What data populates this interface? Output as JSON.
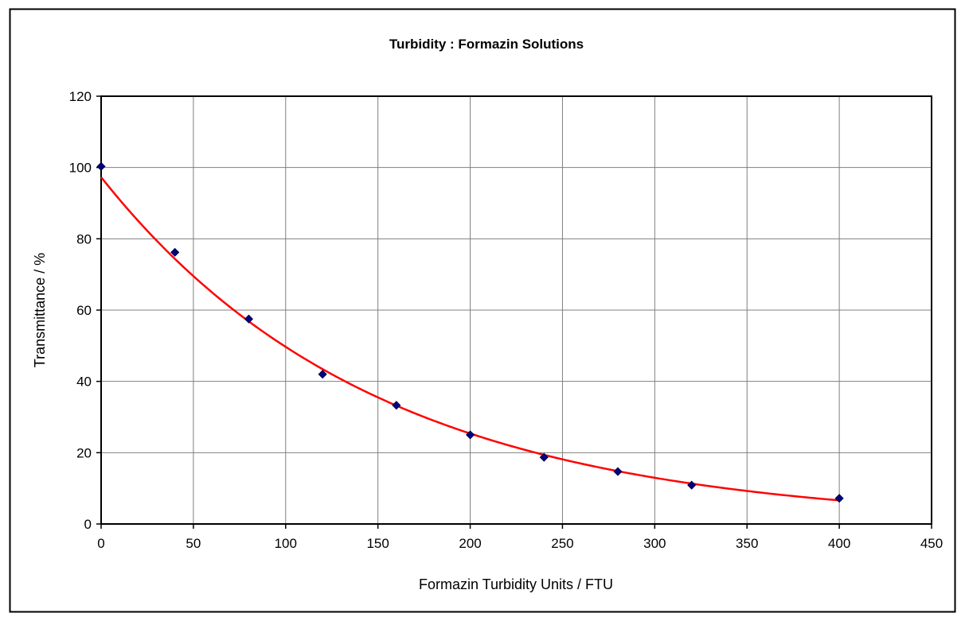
{
  "chart_data": {
    "type": "scatter",
    "title": "Turbidity : Formazin Solutions",
    "xlabel": "Formazin Turbidity Units / FTU",
    "ylabel": "Transmittance / %",
    "xlim": [
      0,
      450
    ],
    "ylim": [
      0,
      120
    ],
    "x_ticks": [
      0,
      50,
      100,
      150,
      200,
      250,
      300,
      350,
      400,
      450
    ],
    "y_ticks": [
      0,
      20,
      40,
      60,
      80,
      100,
      120
    ],
    "grid": true,
    "legend": "none",
    "series": [
      {
        "kind": "points",
        "marker": "diamond",
        "color": "#000080",
        "x": [
          0,
          40,
          80,
          120,
          160,
          200,
          240,
          280,
          320,
          400
        ],
        "y": [
          100.3,
          76.2,
          57.5,
          42.0,
          33.3,
          25.0,
          18.7,
          14.7,
          10.9,
          7.2
        ]
      },
      {
        "kind": "trendline",
        "fit": "exponential",
        "color": "#ff0000",
        "a": 97.3,
        "b": -0.00672
      }
    ]
  }
}
